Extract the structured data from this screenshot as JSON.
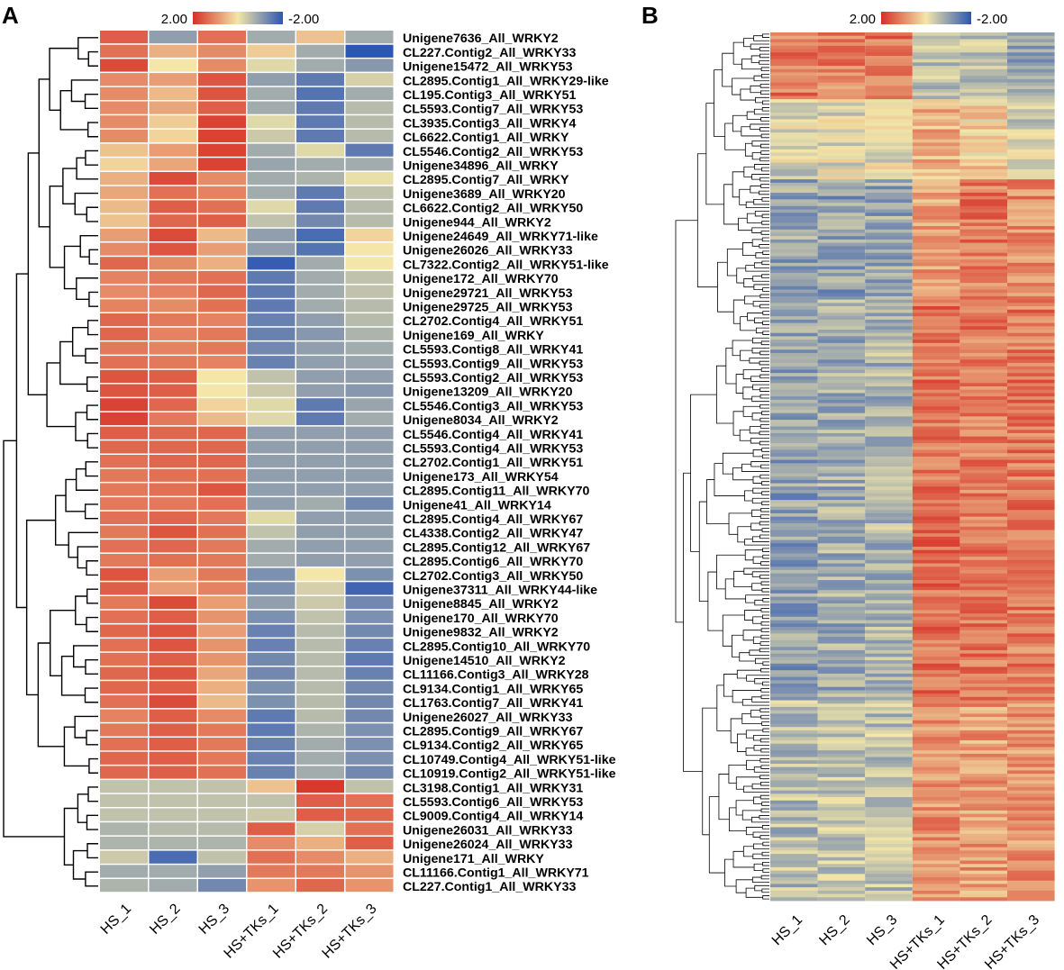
{
  "figure": {
    "panels": [
      "A",
      "B"
    ],
    "palette": {
      "high": "#d73027",
      "mid": "#f3e6a8",
      "low": "#2c56b3",
      "line": "#000000"
    }
  },
  "chart_data": [
    {
      "type": "heatmap",
      "panel": "A",
      "title": "",
      "legend": {
        "max_label": "2.00",
        "min_label": "-2.00",
        "range": [
          -2,
          2
        ]
      },
      "columns": [
        "HS_1",
        "HS_2",
        "HS_3",
        "HS+TKs_1",
        "HS+TKs_2",
        "HS+TKs_3"
      ],
      "rows": [
        "Unigene7636_All_WRKY2",
        "CL227.Contig2_All_WRKY33",
        "Unigene15472_All_WRKY53",
        "CL2895.Contig1_All_WRKY29-like",
        "CL195.Contig3_All_WRKY51",
        "CL5593.Contig7_All_WRKY53",
        "CL3935.Contig3_All_WRKY4",
        "CL6622.Contig1_All_WRKY",
        "CL5546.Contig2_All_WRKY53",
        "Unigene34896_All_WRKY",
        "CL2895.Contig7_All_WRKY",
        "Unigene3689_All_WRKY20",
        "CL6622.Contig2_All_WRKY50",
        "Unigene944_All_WRKY2",
        "Unigene24649_All_WRKY71-like",
        "Unigene26026_All_WRKY33",
        "CL7322.Contig2_All_WRKY51-like",
        "Unigene172_All_WRKY70",
        "Unigene29721_All_WRKY53",
        "Unigene29725_All_WRKY53",
        "CL2702.Contig4_All_WRKY51",
        "Unigene169_All_WRKY",
        "CL5593.Contig8_All_WRKY41",
        "CL5593.Contig9_All_WRKY53",
        "CL5593.Contig2_All_WRKY53",
        "Unigene13209_All_WRKY20",
        "CL5546.Contig3_All_WRKY53",
        "Unigene8034_All_WRKY2",
        "CL5546.Contig4_All_WRKY41",
        "CL5593.Contig4_All_WRKY53",
        "CL2702.Contig1_All_WRKY51",
        "Unigene173_All_WRKY54",
        "CL2895.Contig11_All_WRKY70",
        "Unigene41_All_WRKY14",
        "CL2895.Contig4_All_WRKY67",
        "CL4338.Contig2_All_WRKY47",
        "CL2895.Contig12_All_WRKY67",
        "CL2895.Contig6_All_WRKY70",
        "CL2702.Contig3_All_WRKY50",
        "Unigene37311_All_WRKY44-like",
        "Unigene8845_All_WRKY2",
        "Unigene170_All_WRKY70",
        "Unigene9832_All_WRKY2",
        "CL2895.Contig10_All_WRKY70",
        "Unigene14510_All_WRKY2",
        "CL11166.Contig3_All_WRKY28",
        "CL9134.Contig1_All_WRKY65",
        "CL1763.Contig7_All_WRKY41",
        "Unigene26027_All_WRKY33",
        "CL2895.Contig9_All_WRKY67",
        "CL9134.Contig2_All_WRKY65",
        "CL10749.Contig4_All_WRKY51-like",
        "CL10919.Contig2_All_WRKY51-like",
        "CL3198.Contig1_All_WRKY31",
        "CL5593.Contig6_All_WRKY53",
        "CL9009.Contig4_All_WRKY14",
        "Unigene26031_All_WRKY33",
        "Unigene26024_All_WRKY33",
        "Unigene171_All_WRKY",
        "CL11166.Contig1_All_WRKY71",
        "CL227.Contig1_All_WRKY33"
      ],
      "values": [
        [
          1.5,
          -1.0,
          1.3,
          -0.8,
          0.4,
          -0.8
        ],
        [
          1.3,
          0.6,
          1.0,
          0.3,
          -0.8,
          -2.0
        ],
        [
          1.7,
          0.0,
          1.0,
          -0.2,
          -0.8,
          -1.1
        ],
        [
          1.0,
          0.8,
          1.6,
          -1.0,
          -1.5,
          -0.3
        ],
        [
          1.0,
          0.5,
          1.6,
          -0.8,
          -1.6,
          -0.8
        ],
        [
          1.0,
          0.7,
          1.5,
          -0.8,
          -1.5,
          -0.6
        ],
        [
          1.0,
          0.3,
          1.8,
          -0.2,
          -1.5,
          -0.6
        ],
        [
          1.0,
          0.2,
          1.8,
          -0.4,
          -1.5,
          -0.6
        ],
        [
          0.4,
          0.8,
          1.8,
          -0.8,
          -0.2,
          -1.5
        ],
        [
          0.2,
          0.7,
          1.8,
          -0.9,
          -0.8,
          -0.8
        ],
        [
          0.6,
          1.7,
          1.0,
          -0.8,
          -0.7,
          -0.1
        ],
        [
          0.7,
          1.3,
          1.1,
          -0.8,
          -1.5,
          -0.5
        ],
        [
          0.5,
          1.5,
          1.3,
          -0.2,
          -1.5,
          -0.6
        ],
        [
          0.4,
          1.4,
          1.5,
          -0.5,
          -1.3,
          -0.6
        ],
        [
          0.8,
          1.7,
          0.5,
          -1.0,
          -1.7,
          0.2
        ],
        [
          1.0,
          1.6,
          0.8,
          -1.0,
          -1.6,
          0.0
        ],
        [
          1.4,
          1.0,
          0.6,
          -1.9,
          -0.8,
          0.0
        ],
        [
          1.1,
          1.2,
          1.3,
          -1.5,
          -0.8,
          -0.5
        ],
        [
          1.0,
          1.1,
          1.4,
          -1.5,
          -0.8,
          -0.5
        ],
        [
          1.1,
          1.0,
          1.3,
          -1.5,
          -0.8,
          -0.6
        ],
        [
          1.4,
          1.2,
          1.1,
          -1.4,
          -1.0,
          -0.6
        ],
        [
          1.4,
          1.1,
          1.2,
          -1.4,
          -1.1,
          -0.7
        ],
        [
          1.2,
          1.1,
          1.2,
          -1.3,
          -1.0,
          -0.8
        ],
        [
          1.3,
          1.2,
          1.1,
          -1.4,
          -1.0,
          -0.9
        ],
        [
          1.6,
          1.5,
          0.0,
          -0.5,
          -1.0,
          -1.0
        ],
        [
          1.6,
          1.5,
          0.0,
          -0.4,
          -1.0,
          -1.1
        ],
        [
          1.8,
          1.4,
          0.2,
          -0.2,
          -1.5,
          -0.9
        ],
        [
          1.8,
          1.2,
          0.5,
          -0.2,
          -1.5,
          -0.8
        ],
        [
          1.5,
          1.4,
          1.4,
          -1.0,
          -1.0,
          -1.0
        ],
        [
          1.4,
          1.4,
          1.4,
          -1.0,
          -1.0,
          -1.0
        ],
        [
          1.3,
          1.4,
          1.4,
          -1.0,
          -1.0,
          -1.0
        ],
        [
          1.2,
          1.3,
          1.3,
          -1.0,
          -1.0,
          -1.0
        ],
        [
          1.2,
          1.3,
          1.6,
          -1.0,
          -1.0,
          -1.0
        ],
        [
          1.2,
          1.2,
          1.3,
          -1.0,
          -0.8,
          -1.3
        ],
        [
          1.3,
          1.4,
          1.2,
          -0.2,
          -1.0,
          -1.0
        ],
        [
          1.2,
          1.6,
          1.3,
          -0.5,
          -1.0,
          -1.0
        ],
        [
          1.3,
          1.4,
          1.2,
          -0.8,
          -1.0,
          -1.0
        ],
        [
          1.2,
          1.3,
          1.2,
          -0.8,
          -1.0,
          -1.0
        ],
        [
          1.6,
          0.8,
          1.2,
          -1.2,
          0.0,
          -1.2
        ],
        [
          1.5,
          0.8,
          1.1,
          -1.2,
          -0.3,
          -1.8
        ],
        [
          1.2,
          1.7,
          0.8,
          -1.0,
          -0.4,
          -1.3
        ],
        [
          1.3,
          1.5,
          0.9,
          -1.2,
          -0.5,
          -1.2
        ],
        [
          1.4,
          1.6,
          0.8,
          -1.4,
          -0.6,
          -1.3
        ],
        [
          1.3,
          1.6,
          0.9,
          -1.4,
          -0.6,
          -1.4
        ],
        [
          1.3,
          1.5,
          0.9,
          -1.3,
          -0.6,
          -1.5
        ],
        [
          1.4,
          1.6,
          0.7,
          -1.3,
          -0.6,
          -1.4
        ],
        [
          1.4,
          1.5,
          0.6,
          -1.2,
          -0.6,
          -1.3
        ],
        [
          1.3,
          1.7,
          0.5,
          -1.2,
          -0.6,
          -1.3
        ],
        [
          1.1,
          1.5,
          1.0,
          -1.5,
          -0.6,
          -1.3
        ],
        [
          1.2,
          1.5,
          1.2,
          -1.5,
          -0.7,
          -1.2
        ],
        [
          1.3,
          1.5,
          1.2,
          -1.4,
          -0.8,
          -1.2
        ],
        [
          1.4,
          1.5,
          1.2,
          -1.4,
          -0.8,
          -1.2
        ],
        [
          1.4,
          1.5,
          1.3,
          -1.4,
          -0.8,
          -1.3
        ],
        [
          -0.5,
          -0.5,
          -0.5,
          0.4,
          1.9,
          -0.5
        ],
        [
          -0.5,
          -0.5,
          -0.5,
          -0.5,
          1.5,
          1.3
        ],
        [
          -0.5,
          -0.5,
          -0.5,
          -0.4,
          1.5,
          1.4
        ],
        [
          -0.7,
          -0.6,
          -0.6,
          1.5,
          -0.3,
          1.3
        ],
        [
          -0.7,
          -0.7,
          -0.7,
          1.0,
          0.6,
          1.5
        ],
        [
          -0.4,
          -1.7,
          -0.5,
          1.3,
          1.0,
          0.6
        ],
        [
          -0.8,
          -0.8,
          -1.0,
          1.2,
          1.2,
          0.9
        ],
        [
          -0.7,
          -0.8,
          -1.3,
          0.9,
          1.4,
          0.9
        ]
      ]
    },
    {
      "type": "heatmap",
      "panel": "B",
      "title": "",
      "legend": {
        "max_label": "2.00",
        "min_label": "-2.00",
        "range": [
          -2,
          2
        ]
      },
      "columns": [
        "HS_1",
        "HS_2",
        "HS_3",
        "HS+TKs_1",
        "HS+TKs_2",
        "HS+TKs_3"
      ],
      "row_count": 260,
      "blocks": [
        {
          "rows": 20,
          "values": [
            1.2,
            1.1,
            1.2,
            -0.6,
            -0.5,
            -0.9
          ]
        },
        {
          "rows": 24,
          "values": [
            -0.3,
            -0.2,
            -0.2,
            0.6,
            0.2,
            -0.3
          ]
        },
        {
          "rows": 36,
          "values": [
            -0.9,
            -1.0,
            -0.9,
            0.8,
            1.2,
            1.0
          ]
        },
        {
          "rows": 120,
          "values": [
            -1.0,
            -0.8,
            -0.7,
            1.3,
            1.2,
            1.2
          ]
        },
        {
          "rows": 60,
          "values": [
            -0.6,
            -0.5,
            -0.5,
            0.9,
            0.8,
            0.9
          ]
        }
      ]
    }
  ]
}
